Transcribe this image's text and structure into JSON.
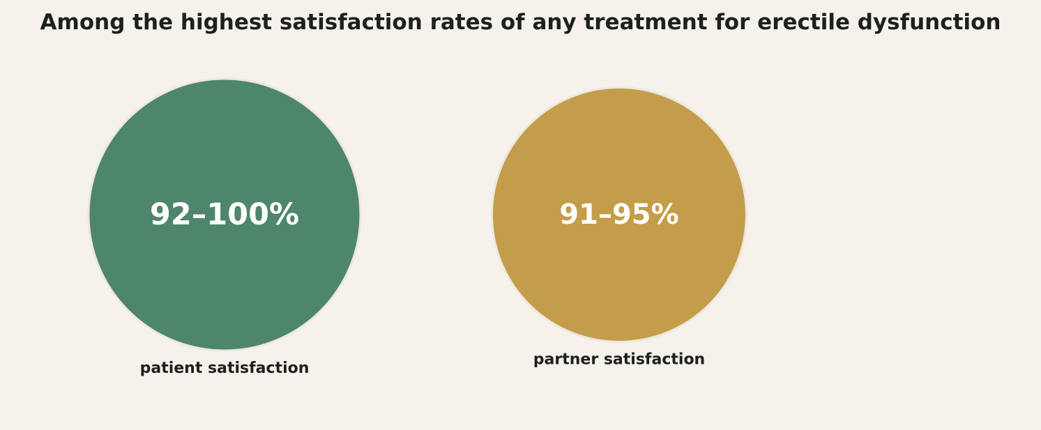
{
  "title": "Among the highest satisfaction rates of any treatment for erectile dysfunction",
  "chart_data": {
    "type": "bubble",
    "title": "Among the highest satisfaction rates of any treatment for erectile dysfunction",
    "series": [
      {
        "name": "patient satisfaction",
        "label": "92–100%",
        "range": [
          92,
          100
        ],
        "color": "#4e866b"
      },
      {
        "name": "partner satisfaction",
        "label": "91–95%",
        "range": [
          91,
          95
        ],
        "color": "#c49d4a"
      }
    ],
    "grid": false,
    "legend": "none"
  }
}
